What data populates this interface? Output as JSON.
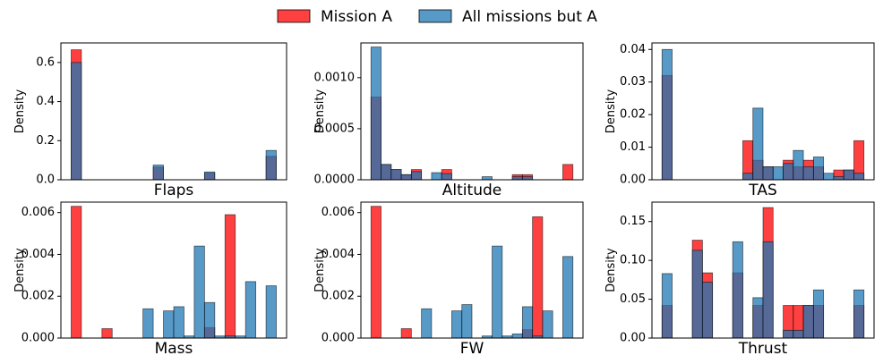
{
  "chart_data": [
    {
      "type": "histogram",
      "xlabel": "Flaps",
      "ylabel": "Density",
      "xlim": [
        -1,
        21
      ],
      "ylim": [
        0,
        0.7
      ],
      "yticks": [
        {
          "value": 0,
          "label": "0.0"
        },
        {
          "value": 0.2,
          "label": "0.2"
        },
        {
          "value": 0.4,
          "label": "0.4"
        },
        {
          "value": 0.6,
          "label": "0.6"
        }
      ],
      "bins": [
        0,
        1,
        2,
        3,
        4,
        5,
        6,
        7,
        8,
        9,
        10,
        11,
        12,
        13,
        14,
        15,
        16,
        17,
        18,
        19,
        20
      ],
      "alpha": 0.75,
      "series": [
        {
          "name": "Mission A",
          "color": "#ff0000",
          "values": [
            0.665,
            0,
            0,
            0,
            0,
            0,
            0,
            0,
            0.065,
            0,
            0,
            0,
            0,
            0.035,
            0,
            0,
            0,
            0,
            0,
            0.12
          ]
        },
        {
          "name": "All missions but A",
          "color": "#1f77b4",
          "values": [
            0.6,
            0,
            0,
            0,
            0,
            0,
            0,
            0,
            0.075,
            0,
            0,
            0,
            0,
            0.04,
            0,
            0,
            0,
            0,
            0,
            0.15
          ]
        }
      ]
    },
    {
      "type": "histogram",
      "xlabel": "Altitude",
      "ylabel": "Density",
      "xlim": [
        -1,
        21
      ],
      "ylim": [
        0,
        0.00134
      ],
      "yticks": [
        {
          "value": 0,
          "label": "0.0000"
        },
        {
          "value": 0.0005,
          "label": "0.0005"
        },
        {
          "value": 0.001,
          "label": "0.0010"
        }
      ],
      "bins": [
        0,
        1,
        2,
        3,
        4,
        5,
        6,
        7,
        8,
        9,
        10,
        11,
        12,
        13,
        14,
        15,
        16,
        17,
        18,
        19,
        20
      ],
      "alpha": 0.75,
      "series": [
        {
          "name": "Mission A",
          "color": "#ff0000",
          "values": [
            0.00081,
            0.00015,
            0.0001,
            5e-05,
            0.0001,
            0,
            0,
            0.0001,
            0,
            0,
            0,
            0,
            0,
            0,
            5e-05,
            5e-05,
            0,
            0,
            0,
            0.00015
          ]
        },
        {
          "name": "All missions but A",
          "color": "#1f77b4",
          "values": [
            0.0013,
            0.00015,
            0.0001,
            5e-05,
            8e-05,
            0,
            7e-05,
            6e-05,
            0,
            0,
            0,
            3e-05,
            0,
            0,
            3e-05,
            3e-05,
            0,
            0,
            0,
            0
          ]
        }
      ]
    },
    {
      "type": "histogram",
      "xlabel": "TAS",
      "ylabel": "Density",
      "xlim": [
        -1,
        21
      ],
      "ylim": [
        0,
        0.042
      ],
      "yticks": [
        {
          "value": 0,
          "label": "0.00"
        },
        {
          "value": 0.01,
          "label": "0.01"
        },
        {
          "value": 0.02,
          "label": "0.02"
        },
        {
          "value": 0.03,
          "label": "0.03"
        },
        {
          "value": 0.04,
          "label": "0.04"
        }
      ],
      "bins": [
        0,
        1,
        2,
        3,
        4,
        5,
        6,
        7,
        8,
        9,
        10,
        11,
        12,
        13,
        14,
        15,
        16,
        17,
        18,
        19,
        20
      ],
      "alpha": 0.75,
      "series": [
        {
          "name": "Mission A",
          "color": "#ff0000",
          "values": [
            0.032,
            0,
            0,
            0,
            0,
            0,
            0,
            0,
            0.012,
            0.006,
            0.004,
            0,
            0.006,
            0.004,
            0.006,
            0.004,
            0,
            0.003,
            0.003,
            0.012
          ]
        },
        {
          "name": "All missions but A",
          "color": "#1f77b4",
          "values": [
            0.04,
            0,
            0,
            0,
            0,
            0,
            0,
            0,
            0.002,
            0.022,
            0.004,
            0.004,
            0.005,
            0.009,
            0.004,
            0.007,
            0.002,
            0.001,
            0.003,
            0.002
          ]
        }
      ]
    },
    {
      "type": "histogram",
      "xlabel": "Mass",
      "ylabel": "Density",
      "xlim": [
        -1,
        21
      ],
      "ylim": [
        0,
        0.0065
      ],
      "yticks": [
        {
          "value": 0,
          "label": "0.000"
        },
        {
          "value": 0.002,
          "label": "0.002"
        },
        {
          "value": 0.004,
          "label": "0.004"
        },
        {
          "value": 0.006,
          "label": "0.006"
        }
      ],
      "bins": [
        0,
        1,
        2,
        3,
        4,
        5,
        6,
        7,
        8,
        9,
        10,
        11,
        12,
        13,
        14,
        15,
        16,
        17,
        18,
        19,
        20
      ],
      "alpha": 0.75,
      "series": [
        {
          "name": "Mission A",
          "color": "#ff0000",
          "values": [
            0.0063,
            0,
            0,
            0.00045,
            0,
            0,
            0,
            0,
            0,
            0,
            0,
            0,
            0,
            0.0005,
            0,
            0.0059,
            0,
            0,
            0,
            0
          ]
        },
        {
          "name": "All missions but A",
          "color": "#1f77b4",
          "values": [
            0,
            0,
            0,
            0,
            0,
            0,
            0,
            0.0014,
            0,
            0.0013,
            0.0015,
            0.0001,
            0.0044,
            0.0017,
            0.0001,
            0.0001,
            0.0001,
            0.0027,
            0,
            0.0025
          ]
        }
      ]
    },
    {
      "type": "histogram",
      "xlabel": "FW",
      "ylabel": "Density",
      "xlim": [
        -1,
        21
      ],
      "ylim": [
        0,
        0.0065
      ],
      "yticks": [
        {
          "value": 0,
          "label": "0.000"
        },
        {
          "value": 0.002,
          "label": "0.002"
        },
        {
          "value": 0.004,
          "label": "0.004"
        },
        {
          "value": 0.006,
          "label": "0.006"
        }
      ],
      "bins": [
        0,
        1,
        2,
        3,
        4,
        5,
        6,
        7,
        8,
        9,
        10,
        11,
        12,
        13,
        14,
        15,
        16,
        17,
        18,
        19,
        20
      ],
      "alpha": 0.75,
      "series": [
        {
          "name": "Mission A",
          "color": "#ff0000",
          "values": [
            0.0063,
            0,
            0,
            0.00045,
            0,
            0,
            0,
            0,
            0,
            0,
            0,
            0,
            0,
            0,
            0,
            0.0004,
            0.0058,
            0,
            0,
            0
          ]
        },
        {
          "name": "All missions but A",
          "color": "#1f77b4",
          "values": [
            0,
            0,
            0,
            0,
            0,
            0.0014,
            0,
            0,
            0.0013,
            0.0016,
            0,
            0.0001,
            0.0044,
            0.0001,
            0.0002,
            0.0015,
            0.0001,
            0.0013,
            0,
            0.0039
          ]
        }
      ]
    },
    {
      "type": "histogram",
      "xlabel": "Thrust",
      "ylabel": "Density",
      "xlim": [
        -1,
        21
      ],
      "ylim": [
        0,
        0.175
      ],
      "yticks": [
        {
          "value": 0,
          "label": "0.00"
        },
        {
          "value": 0.05,
          "label": "0.05"
        },
        {
          "value": 0.1,
          "label": "0.10"
        },
        {
          "value": 0.15,
          "label": "0.15"
        }
      ],
      "bins": [
        0,
        1,
        2,
        3,
        4,
        5,
        6,
        7,
        8,
        9,
        10,
        11,
        12,
        13,
        14,
        15,
        16,
        17,
        18,
        19,
        20
      ],
      "alpha": 0.75,
      "series": [
        {
          "name": "Mission A",
          "color": "#ff0000",
          "values": [
            0.042,
            0,
            0,
            0.126,
            0.084,
            0,
            0,
            0.084,
            0,
            0.042,
            0.168,
            0,
            0.042,
            0.042,
            0.042,
            0.042,
            0,
            0,
            0,
            0.042
          ]
        },
        {
          "name": "All missions but A",
          "color": "#1f77b4",
          "values": [
            0.083,
            0,
            0,
            0.113,
            0.072,
            0,
            0,
            0.124,
            0,
            0.052,
            0.124,
            0,
            0.01,
            0.01,
            0.042,
            0.062,
            0,
            0,
            0,
            0.062
          ]
        }
      ]
    }
  ]
}
